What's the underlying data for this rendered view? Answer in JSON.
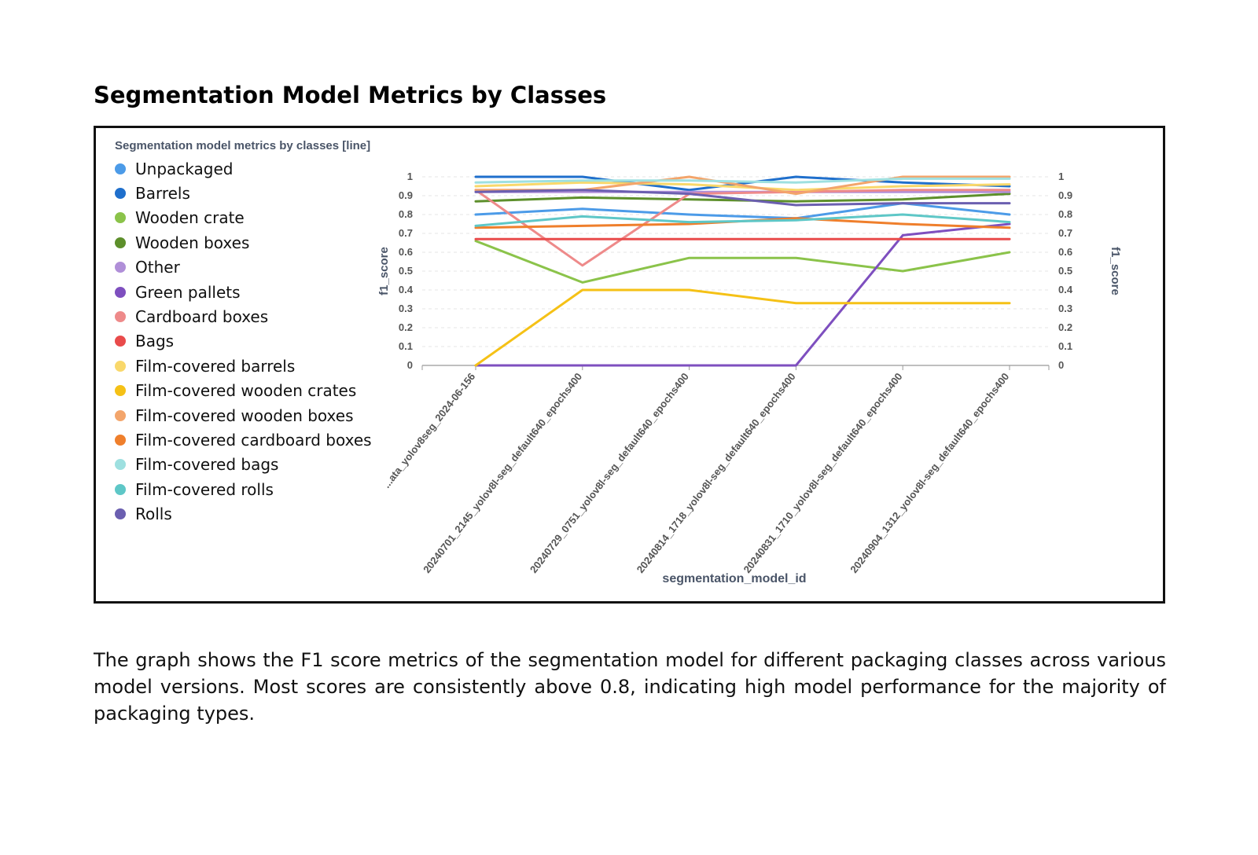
{
  "page": {
    "title": "Segmentation Model Metrics by Classes",
    "description": "The graph shows the F1 score metrics of the segmentation model for different packaging classes across various model versions. Most scores are consistently above 0.8, indicating high model performance for the majority of packaging types."
  },
  "chart_data": {
    "type": "line",
    "title": "Segmentation model metrics by classes [line]",
    "xlabel": "segmentation_model_id",
    "ylabel": "f1_score",
    "ylabel_right": "f1_score",
    "ylim": [
      0,
      1
    ],
    "yticks": [
      "0",
      "0.1",
      "0.2",
      "0.3",
      "0.4",
      "0.5",
      "0.6",
      "0.7",
      "0.8",
      "0.9",
      "1"
    ],
    "grid": true,
    "legend_position": "left",
    "categories": [
      "...ata_yolov8seg_2024-06-156",
      "20240701_2145_yolov8l-seg_default640_epochs400",
      "20240729_0751_yolov8l-seg_default640_epochs400",
      "20240814_1718_yolov8l-seg_default640_epochs400",
      "20240831_1710_yolov8l-seg_default640_epochs400",
      "20240904_1312_yolov8l-seg_default640_epochs400"
    ],
    "series": [
      {
        "name": "Unpackaged",
        "color": "#4c9be8",
        "values": [
          0.8,
          0.83,
          0.8,
          0.78,
          0.86,
          0.8
        ]
      },
      {
        "name": "Barrels",
        "color": "#1f6fcc",
        "values": [
          1.0,
          1.0,
          0.93,
          1.0,
          0.97,
          0.95
        ]
      },
      {
        "name": "Wooden crate",
        "color": "#8bc34a",
        "values": [
          0.66,
          0.44,
          0.57,
          0.57,
          0.5,
          0.6
        ]
      },
      {
        "name": "Wooden boxes",
        "color": "#5d8f2b",
        "values": [
          0.87,
          0.89,
          0.88,
          0.87,
          0.88,
          0.91
        ]
      },
      {
        "name": "Other",
        "color": "#b08fd8",
        "values": [
          0.92,
          0.92,
          0.92,
          0.92,
          0.92,
          0.92
        ]
      },
      {
        "name": "Green pallets",
        "color": "#7e4fbf",
        "values": [
          0.0,
          0.0,
          0.0,
          0.0,
          0.69,
          0.75
        ]
      },
      {
        "name": "Cardboard boxes",
        "color": "#ee8a8a",
        "values": [
          0.93,
          0.53,
          0.91,
          0.92,
          0.93,
          0.93
        ]
      },
      {
        "name": "Bags",
        "color": "#e94b4b",
        "values": [
          0.67,
          0.67,
          0.67,
          0.67,
          0.67,
          0.67
        ]
      },
      {
        "name": "Film-covered barrels",
        "color": "#f9d86b",
        "values": [
          0.95,
          0.97,
          0.96,
          0.93,
          0.95,
          0.96
        ]
      },
      {
        "name": "Film-covered wooden crates",
        "color": "#f5c116",
        "values": [
          0.0,
          0.4,
          0.4,
          0.33,
          0.33,
          0.33
        ]
      },
      {
        "name": "Film-covered wooden boxes",
        "color": "#f3a56b",
        "values": [
          0.93,
          0.93,
          1.0,
          0.91,
          1.0,
          1.0
        ]
      },
      {
        "name": "Film-covered cardboard boxes",
        "color": "#ef7f2c",
        "values": [
          0.73,
          0.74,
          0.75,
          0.78,
          0.75,
          0.73
        ]
      },
      {
        "name": "Film-covered bags",
        "color": "#9ee0e0",
        "values": [
          0.97,
          0.98,
          0.98,
          0.97,
          0.99,
          0.99
        ]
      },
      {
        "name": "Film-covered rolls",
        "color": "#5ec7c7",
        "values": [
          0.74,
          0.79,
          0.76,
          0.77,
          0.8,
          0.76
        ]
      },
      {
        "name": "Rolls",
        "color": "#6b5fb0",
        "values": [
          0.92,
          0.93,
          0.91,
          0.85,
          0.86,
          0.86
        ]
      }
    ]
  }
}
